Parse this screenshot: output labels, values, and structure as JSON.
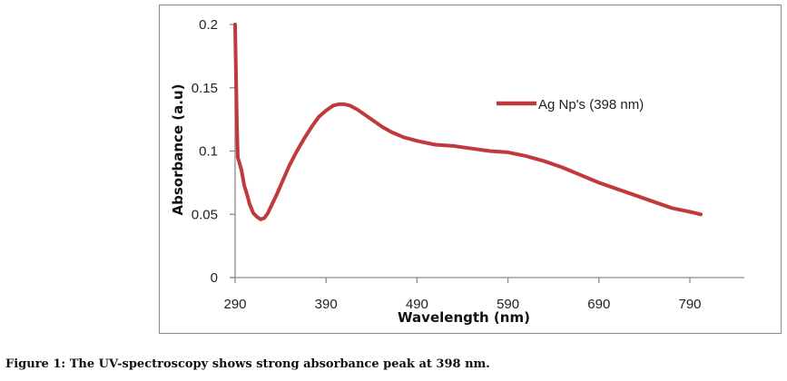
{
  "caption": "Figure 1: The UV-spectroscopy shows strong absorbance peak at 398 nm.",
  "chart_data": {
    "type": "line",
    "title": "",
    "xlabel": "Wavelength (nm)",
    "ylabel": "Absorbance (a.u)",
    "xlim": [
      290,
      850
    ],
    "ylim": [
      0,
      0.2
    ],
    "x_ticks": [
      290,
      390,
      490,
      590,
      690,
      790
    ],
    "x_tick_labels": [
      "290",
      "390",
      "490",
      "590",
      "690",
      "790"
    ],
    "y_ticks": [
      0,
      0.05,
      0.1,
      0.15,
      0.2
    ],
    "y_tick_labels": [
      "0",
      "0.05",
      "0.1",
      "0.15",
      "0.2"
    ],
    "grid": false,
    "legend": {
      "position": "top-right",
      "entries": [
        "Ag Np's (398 nm)"
      ]
    },
    "series": [
      {
        "name": "Ag Np's (398 nm)",
        "color": "#c0393b",
        "x": [
          290,
          291,
          292,
          293,
          295,
          297,
          300,
          303,
          306,
          310,
          314,
          318,
          322,
          326,
          330,
          336,
          342,
          350,
          358,
          366,
          374,
          382,
          390,
          398,
          404,
          410,
          416,
          424,
          432,
          442,
          452,
          462,
          475,
          490,
          510,
          530,
          550,
          570,
          590,
          610,
          630,
          650,
          670,
          690,
          710,
          730,
          750,
          770,
          790,
          802
        ],
        "y": [
          0.2,
          0.16,
          0.12,
          0.095,
          0.09,
          0.085,
          0.073,
          0.066,
          0.058,
          0.051,
          0.048,
          0.046,
          0.047,
          0.051,
          0.057,
          0.066,
          0.076,
          0.089,
          0.1,
          0.11,
          0.119,
          0.127,
          0.132,
          0.136,
          0.137,
          0.137,
          0.136,
          0.133,
          0.129,
          0.124,
          0.119,
          0.115,
          0.111,
          0.108,
          0.105,
          0.104,
          0.102,
          0.1,
          0.099,
          0.096,
          0.092,
          0.087,
          0.081,
          0.075,
          0.07,
          0.065,
          0.06,
          0.055,
          0.052,
          0.05
        ]
      }
    ]
  }
}
